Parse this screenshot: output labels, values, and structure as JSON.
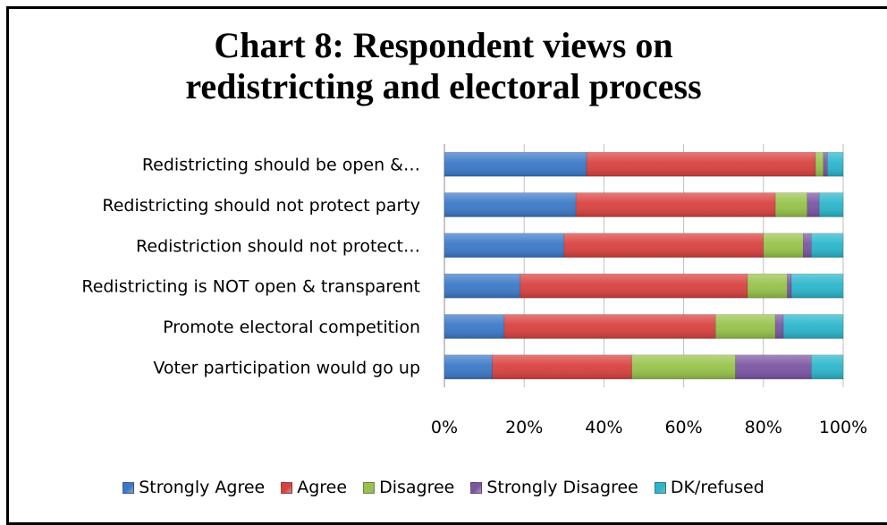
{
  "chart_data": {
    "type": "bar",
    "orientation": "horizontal",
    "stacked": "percent",
    "title": [
      "Chart 8: Respondent views on",
      "redistricting and electoral process"
    ],
    "categories": [
      "Redistricting should be open &…",
      "Redistricting should not protect party",
      "Redistriction should not protect…",
      "Redistricting is NOT open & transparent",
      "Promote electoral competition",
      "Voter participation would go up"
    ],
    "series": [
      {
        "name": "Strongly Agree",
        "color": "#3b79c8",
        "values": [
          36,
          33,
          30,
          19,
          15,
          12
        ]
      },
      {
        "name": "Agree",
        "color": "#d9413f",
        "values": [
          58,
          50,
          50,
          57,
          53,
          35
        ]
      },
      {
        "name": "Disagree",
        "color": "#97c34a",
        "values": [
          2,
          8,
          10,
          10,
          15,
          26
        ]
      },
      {
        "name": "Strongly Disagree",
        "color": "#7b55a3",
        "values": [
          1,
          3,
          2,
          1,
          2,
          19
        ]
      },
      {
        "name": "DK/refused",
        "color": "#2ab6cc",
        "values": [
          4,
          6,
          8,
          13,
          15,
          8
        ]
      }
    ],
    "x_ticks": [
      "0%",
      "20%",
      "40%",
      "60%",
      "80%",
      "100%"
    ],
    "xlim": [
      0,
      100
    ],
    "grid": true,
    "legend_position": "bottom"
  }
}
